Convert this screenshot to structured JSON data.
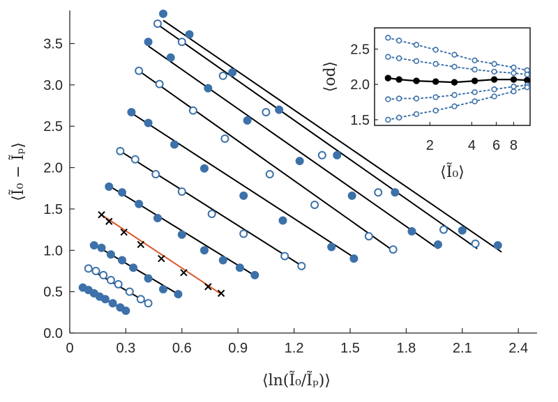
{
  "chart_data": [
    {
      "type": "scatter",
      "name": "main",
      "xlabel": "⟨ln(Ĩ₀/Ĩₚ)⟩",
      "ylabel": "⟨Ĩ₀ − Ĩₚ⟩",
      "xlim": [
        0,
        2.5
      ],
      "ylim": [
        0,
        3.9
      ],
      "xticks": [
        0,
        0.3,
        0.6,
        0.9,
        1.2,
        1.5,
        1.8,
        2.1,
        2.4
      ],
      "xtick_labels": [
        "0",
        "0.3",
        "0.6",
        "0.9",
        "1.2",
        "1.5",
        "1.8",
        "2.1",
        "2.4"
      ],
      "yticks": [
        0,
        0.5,
        1.0,
        1.5,
        2.0,
        2.5,
        3.0,
        3.5
      ],
      "ytick_labels": [
        "0.0",
        "0.5",
        "1.0",
        "1.5",
        "2.0",
        "2.5",
        "3.0",
        "3.5"
      ],
      "colors": {
        "blue": "#3c71aa",
        "black": "#000000",
        "red": "#d9572b"
      },
      "series": [
        {
          "name": "s1",
          "marker": "filled",
          "fit_color": "black",
          "fit": [
            [
              0.07,
              0.55
            ],
            [
              0.3,
              0.27
            ]
          ],
          "points": [
            [
              0.07,
              0.55
            ],
            [
              0.1,
              0.52
            ],
            [
              0.13,
              0.48
            ],
            [
              0.16,
              0.44
            ],
            [
              0.19,
              0.41
            ],
            [
              0.23,
              0.36
            ],
            [
              0.27,
              0.31
            ],
            [
              0.3,
              0.27
            ]
          ]
        },
        {
          "name": "s2",
          "marker": "open",
          "fit_color": "black",
          "fit": [
            [
              0.1,
              0.78
            ],
            [
              0.42,
              0.36
            ]
          ],
          "points": [
            [
              0.1,
              0.78
            ],
            [
              0.14,
              0.75
            ],
            [
              0.18,
              0.7
            ],
            [
              0.22,
              0.64
            ],
            [
              0.26,
              0.59
            ],
            [
              0.32,
              0.5
            ],
            [
              0.38,
              0.41
            ],
            [
              0.42,
              0.36
            ]
          ]
        },
        {
          "name": "s3",
          "marker": "filled",
          "fit_color": "black",
          "fit": [
            [
              0.13,
              1.07
            ],
            [
              0.58,
              0.47
            ]
          ],
          "points": [
            [
              0.13,
              1.06
            ],
            [
              0.17,
              1.03
            ],
            [
              0.22,
              0.95
            ],
            [
              0.28,
              0.88
            ],
            [
              0.34,
              0.79
            ],
            [
              0.42,
              0.66
            ],
            [
              0.5,
              0.53
            ],
            [
              0.58,
              0.47
            ]
          ]
        },
        {
          "name": "s4",
          "marker": "cross",
          "fit_color": "red",
          "fit": [
            [
              0.17,
              1.43
            ],
            [
              0.81,
              0.47
            ]
          ],
          "points": [
            [
              0.17,
              1.43
            ],
            [
              0.21,
              1.35
            ],
            [
              0.29,
              1.22
            ],
            [
              0.38,
              1.07
            ],
            [
              0.49,
              0.9
            ],
            [
              0.61,
              0.73
            ],
            [
              0.74,
              0.56
            ],
            [
              0.81,
              0.48
            ]
          ]
        },
        {
          "name": "s5",
          "marker": "filled",
          "fit_color": "black",
          "fit": [
            [
              0.21,
              1.78
            ],
            [
              1.0,
              0.68
            ]
          ],
          "points": [
            [
              0.21,
              1.77
            ],
            [
              0.28,
              1.7
            ],
            [
              0.37,
              1.56
            ],
            [
              0.47,
              1.39
            ],
            [
              0.6,
              1.19
            ],
            [
              0.72,
              1.0
            ],
            [
              0.82,
              0.88
            ],
            [
              0.91,
              0.79
            ],
            [
              0.99,
              0.7
            ]
          ]
        },
        {
          "name": "s6",
          "marker": "open",
          "fit_color": "black",
          "fit": [
            [
              0.27,
              2.2
            ],
            [
              1.25,
              0.8
            ]
          ],
          "points": [
            [
              0.27,
              2.2
            ],
            [
              0.35,
              2.1
            ],
            [
              0.46,
              1.92
            ],
            [
              0.6,
              1.71
            ],
            [
              0.76,
              1.44
            ],
            [
              0.93,
              1.2
            ],
            [
              1.15,
              0.93
            ],
            [
              1.24,
              0.81
            ]
          ]
        },
        {
          "name": "s7",
          "marker": "filled",
          "fit_color": "black",
          "fit": [
            [
              0.33,
              2.66
            ],
            [
              1.53,
              0.9
            ]
          ],
          "points": [
            [
              0.33,
              2.67
            ],
            [
              0.42,
              2.54
            ],
            [
              0.56,
              2.28
            ],
            [
              0.72,
              1.99
            ],
            [
              0.93,
              1.66
            ],
            [
              1.14,
              1.36
            ],
            [
              1.4,
              1.04
            ],
            [
              1.52,
              0.9
            ]
          ]
        },
        {
          "name": "s8",
          "marker": "open",
          "fit_color": "black",
          "fit": [
            [
              0.37,
              3.17
            ],
            [
              1.74,
              0.98
            ]
          ],
          "points": [
            [
              0.37,
              3.17
            ],
            [
              0.48,
              3.01
            ],
            [
              0.66,
              2.69
            ],
            [
              0.83,
              2.35
            ],
            [
              1.07,
              1.92
            ],
            [
              1.31,
              1.55
            ],
            [
              1.6,
              1.17
            ],
            [
              1.73,
              1.01
            ]
          ]
        },
        {
          "name": "s9",
          "marker": "filled",
          "fit_color": "black",
          "fit": [
            [
              0.42,
              3.47
            ],
            [
              1.97,
              1.02
            ]
          ],
          "points": [
            [
              0.42,
              3.52
            ],
            [
              0.54,
              3.33
            ],
            [
              0.74,
              2.96
            ],
            [
              0.95,
              2.57
            ],
            [
              1.23,
              2.08
            ],
            [
              1.51,
              1.66
            ],
            [
              1.83,
              1.23
            ],
            [
              1.97,
              1.07
            ]
          ]
        },
        {
          "name": "s10",
          "marker": "open",
          "fit_color": "black",
          "fit": [
            [
              0.47,
              3.73
            ],
            [
              2.18,
              1.02
            ]
          ],
          "points": [
            [
              0.47,
              3.74
            ],
            [
              0.6,
              3.52
            ],
            [
              0.82,
              3.11
            ],
            [
              1.05,
              2.67
            ],
            [
              1.35,
              2.15
            ],
            [
              1.65,
              1.7
            ],
            [
              2.0,
              1.25
            ],
            [
              2.17,
              1.08
            ]
          ]
        },
        {
          "name": "s11",
          "marker": "filled",
          "fit_color": "black",
          "fit": [
            [
              0.5,
              3.78
            ],
            [
              2.31,
              0.98
            ]
          ],
          "points": [
            [
              0.5,
              3.86
            ],
            [
              0.64,
              3.61
            ],
            [
              0.87,
              3.15
            ],
            [
              1.12,
              2.7
            ],
            [
              1.43,
              2.15
            ],
            [
              1.74,
              1.7
            ],
            [
              2.1,
              1.24
            ],
            [
              2.29,
              1.06
            ]
          ]
        }
      ]
    },
    {
      "type": "line",
      "name": "inset",
      "xlabel": "⟨Ĩ₀⟩",
      "ylabel": "⟨od⟩",
      "xscale": "log",
      "xlim": [
        0.8,
        10.5
      ],
      "ylim": [
        1.42,
        2.8
      ],
      "xticks": [
        2,
        4,
        6,
        8
      ],
      "xtick_labels": [
        "2",
        "4",
        "6",
        "8"
      ],
      "yticks": [
        1.5,
        2.0,
        2.5
      ],
      "ytick_labels": [
        "1.5",
        "2.0",
        "2.5"
      ],
      "x": [
        1.0,
        1.2,
        1.6,
        2.2,
        3.0,
        4.2,
        5.8,
        8.0,
        10.0
      ],
      "series": [
        {
          "name": "mean",
          "style": "solid-filled",
          "color": "#000000",
          "values": [
            2.09,
            2.07,
            2.05,
            2.04,
            2.03,
            2.05,
            2.07,
            2.07,
            2.06
          ]
        },
        {
          "name": "upper2",
          "style": "dotted-open",
          "color": "#3c71aa",
          "values": [
            2.66,
            2.62,
            2.56,
            2.49,
            2.42,
            2.34,
            2.29,
            2.24,
            2.2
          ]
        },
        {
          "name": "upper1",
          "style": "dotted-open",
          "color": "#3c71aa",
          "values": [
            2.39,
            2.37,
            2.33,
            2.29,
            2.25,
            2.21,
            2.18,
            2.16,
            2.14
          ]
        },
        {
          "name": "lower1",
          "style": "dotted-open",
          "color": "#3c71aa",
          "values": [
            1.79,
            1.8,
            1.8,
            1.82,
            1.85,
            1.89,
            1.93,
            1.97,
            1.99
          ]
        },
        {
          "name": "lower2",
          "style": "dotted-open",
          "color": "#3c71aa",
          "values": [
            1.5,
            1.53,
            1.58,
            1.63,
            1.69,
            1.76,
            1.83,
            1.9,
            1.96
          ]
        }
      ]
    }
  ]
}
